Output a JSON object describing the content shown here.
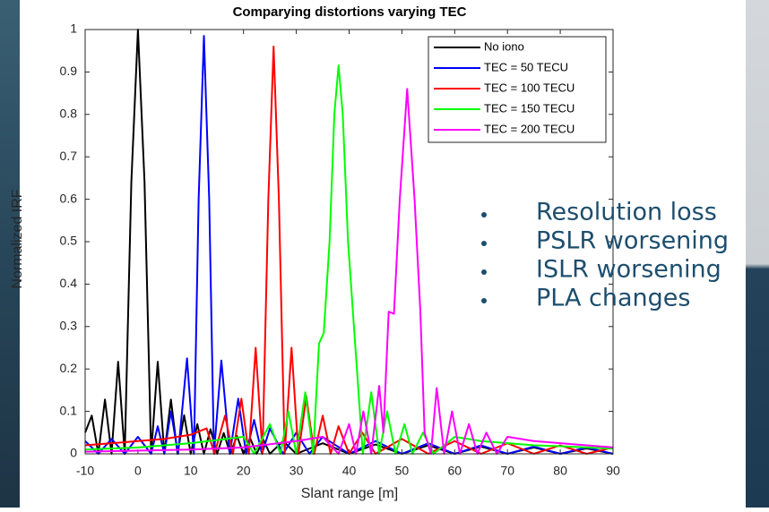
{
  "chart_data": {
    "type": "line",
    "title": "Comparying distortions varying TEC",
    "x_label": "Slant range [m]",
    "y_label": "Normalized IRF",
    "xlim": [
      -10,
      90
    ],
    "xticks": [
      -10,
      0,
      10,
      20,
      30,
      40,
      50,
      60,
      70,
      80,
      90
    ],
    "ylim": [
      0,
      1
    ],
    "yticks": [
      0,
      0.1,
      0.2,
      0.3,
      0.4,
      0.5,
      0.6,
      0.7,
      0.8,
      0.9,
      1
    ],
    "grid": false,
    "legend": "upper right",
    "series": [
      {
        "name": "No iono",
        "color": "#000000",
        "x": [
          -10,
          -8.75,
          -7.5,
          -6.25,
          -5,
          -3.75,
          -2.5,
          -1.25,
          0,
          1.25,
          2.5,
          3.75,
          5,
          6.25,
          7.5,
          8.75,
          10,
          11.25,
          12.5,
          13.75,
          15,
          16.25,
          17.5,
          18.75,
          20,
          21.25,
          22.5,
          23.75,
          25,
          27.5,
          30,
          35,
          40,
          45,
          50,
          55,
          60,
          65,
          70,
          75,
          80,
          85,
          90
        ],
        "values": [
          0.05,
          0.09,
          0,
          0.128,
          0,
          0.217,
          0,
          0.64,
          1,
          0.64,
          0,
          0.217,
          0,
          0.128,
          0,
          0.091,
          0,
          0.07,
          0,
          0.058,
          0,
          0.049,
          0,
          0.042,
          0,
          0.037,
          0,
          0.033,
          0,
          0.03,
          0,
          0.025,
          0,
          0.022,
          0,
          0.02,
          0,
          0.017,
          0,
          0.015,
          0,
          0.013,
          0
        ]
      },
      {
        "name": "TEC = 50 TECU",
        "color": "#0000ff",
        "x": [
          -10,
          -7.5,
          -5,
          -2.5,
          0,
          2.5,
          3.75,
          5,
          6.25,
          7.6,
          9.3,
          10.6,
          11.5,
          12.5,
          13.5,
          14.4,
          15.8,
          17.4,
          19,
          20.5,
          22,
          23.5,
          25,
          27.5,
          30,
          32.5,
          35,
          40,
          45,
          50,
          55,
          60,
          65,
          70,
          75,
          80,
          85,
          90
        ],
        "values": [
          0.03,
          0,
          0.035,
          0,
          0.04,
          0,
          0.065,
          0,
          0.1,
          0,
          0.225,
          0,
          0.6,
          0.985,
          0.6,
          0,
          0.22,
          0,
          0.13,
          0,
          0.08,
          0,
          0.06,
          0,
          0.05,
          0,
          0.04,
          0,
          0.03,
          0,
          0.025,
          0,
          0.02,
          0,
          0.017,
          0,
          0.015,
          0
        ]
      },
      {
        "name": "TEC = 100 TECU",
        "color": "#ff0000",
        "x": [
          -10,
          -5,
          0,
          5,
          10,
          13,
          14.5,
          16.5,
          18,
          19.6,
          21,
          22.3,
          23.6,
          24.7,
          25.7,
          26.7,
          27.8,
          29.1,
          30.4,
          31.9,
          33.4,
          35,
          36.5,
          38,
          40,
          42.5,
          45,
          50,
          55,
          60,
          65,
          70,
          75,
          80,
          85,
          90
        ],
        "values": [
          0.02,
          0.025,
          0.03,
          0.035,
          0.045,
          0.06,
          0,
          0.09,
          0,
          0.13,
          0,
          0.25,
          0,
          0.6,
          0.96,
          0.6,
          0,
          0.25,
          0,
          0.135,
          0,
          0.09,
          0,
          0.065,
          0,
          0.05,
          0,
          0.035,
          0,
          0.03,
          0,
          0.025,
          0,
          0.02,
          0,
          0.015
        ]
      },
      {
        "name": "TEC = 150 TECU",
        "color": "#00ff00",
        "x": [
          -10,
          0,
          10,
          20,
          22,
          25,
          27,
          28.5,
          30,
          31.7,
          33.2,
          34.3,
          35.2,
          36.3,
          37.2,
          38,
          38.8,
          39.8,
          41,
          42.6,
          44.2,
          45.7,
          47.2,
          48.8,
          50.5,
          52,
          54,
          56,
          60,
          65,
          70,
          75,
          80,
          85,
          90
        ],
        "values": [
          0.01,
          0.015,
          0.025,
          0.04,
          0,
          0.07,
          0,
          0.1,
          0,
          0.145,
          0,
          0.26,
          0.285,
          0.5,
          0.8,
          0.915,
          0.8,
          0.5,
          0.285,
          0,
          0.145,
          0,
          0.1,
          0,
          0.07,
          0,
          0.05,
          0,
          0.04,
          0.03,
          0.025,
          0.02,
          0.018,
          0.015,
          0.012
        ]
      },
      {
        "name": "TEC = 200 TECU",
        "color": "#ff00ff",
        "x": [
          -10,
          10,
          20,
          30,
          35,
          38,
          40,
          41.3,
          42.7,
          44.2,
          45.7,
          46.5,
          47.5,
          48.5,
          49.6,
          51,
          52.4,
          53.5,
          54.3,
          55.5,
          56.6,
          58,
          59.5,
          61,
          62.7,
          64.3,
          66,
          68,
          70,
          75,
          80,
          85,
          90
        ],
        "values": [
          0.005,
          0.01,
          0.015,
          0.03,
          0.04,
          0,
          0.07,
          0,
          0.1,
          0,
          0.16,
          0.05,
          0.335,
          0.33,
          0.6,
          0.86,
          0.6,
          0.335,
          0.05,
          0,
          0.155,
          0,
          0.1,
          0,
          0.07,
          0,
          0.05,
          0,
          0.04,
          0.03,
          0.025,
          0.02,
          0.015
        ]
      }
    ]
  },
  "slide": {
    "bullets": [
      "Resolution loss",
      "PSLR worsening",
      "ISLR worsening",
      "PLA changes"
    ]
  }
}
